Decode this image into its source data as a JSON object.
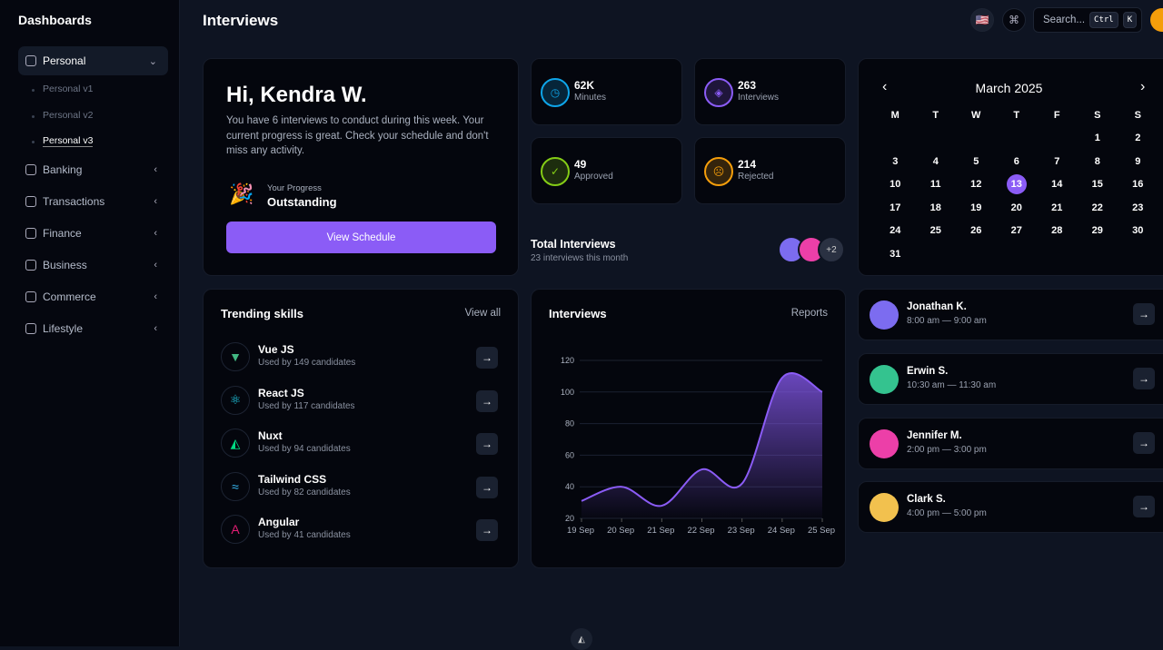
{
  "sidebar": {
    "title": "Dashboards",
    "items": [
      {
        "label": "Personal",
        "icon": "cube-icon",
        "expanded": true
      },
      {
        "label": "Banking",
        "icon": "building-icon"
      },
      {
        "label": "Transactions",
        "icon": "credit-card-icon"
      },
      {
        "label": "Finance",
        "icon": "chart-icon"
      },
      {
        "label": "Business",
        "icon": "briefcase-icon"
      },
      {
        "label": "Commerce",
        "icon": "store-icon"
      },
      {
        "label": "Lifestyle",
        "icon": "plant-icon"
      }
    ],
    "subitems": [
      "Personal v1",
      "Personal v2",
      "Personal v3"
    ],
    "current_sub": "Personal v3"
  },
  "header": {
    "title": "Interviews",
    "search_placeholder": "Search...",
    "kbd1": "Ctrl",
    "kbd2": "K"
  },
  "greeting": {
    "title": "Hi, Kendra W.",
    "text": "You have 6 interviews to conduct during this week. Your current progress is great. Check your schedule and don't miss any activity.",
    "progress_label": "Your Progress",
    "progress_value": "Outstanding",
    "button": "View Schedule"
  },
  "stats": [
    {
      "value": "62K",
      "label": "Minutes",
      "color": "#0ea5e9"
    },
    {
      "value": "263",
      "label": "Interviews",
      "color": "#8b5cf6"
    },
    {
      "value": "49",
      "label": "Approved",
      "color": "#84cc16"
    },
    {
      "value": "214",
      "label": "Rejected",
      "color": "#f59e0b"
    }
  ],
  "total": {
    "title": "Total Interviews",
    "subtitle": "23 interviews this month",
    "more": "+2"
  },
  "calendar": {
    "month": "March 2025",
    "weekdays": [
      "M",
      "T",
      "W",
      "T",
      "F",
      "S",
      "S"
    ],
    "first_offset": 5,
    "days": 31,
    "selected": 13
  },
  "skills": {
    "title": "Trending skills",
    "link": "View all",
    "items": [
      {
        "name": "Vue JS",
        "sub": "Used by 149 candidates",
        "color": "#42b883",
        "glyph": "▼"
      },
      {
        "name": "React JS",
        "sub": "Used by 117 candidates",
        "color": "#22d3ee",
        "glyph": "⚛"
      },
      {
        "name": "Nuxt",
        "sub": "Used by 94 candidates",
        "color": "#00dc82",
        "glyph": "◭"
      },
      {
        "name": "Tailwind CSS",
        "sub": "Used by 82 candidates",
        "color": "#38bdf8",
        "glyph": "≈"
      },
      {
        "name": "Angular",
        "sub": "Used by 41 candidates",
        "color": "#e11d74",
        "glyph": "A"
      }
    ]
  },
  "chart_data": {
    "type": "area",
    "title": "Interviews",
    "link": "Reports",
    "categories": [
      "19 Sep",
      "20 Sep",
      "21 Sep",
      "22 Sep",
      "23 Sep",
      "24 Sep",
      "25 Sep"
    ],
    "values": [
      31,
      40,
      28,
      51,
      42,
      109,
      100
    ],
    "ylim": [
      20,
      120
    ],
    "yticks": [
      20,
      40,
      60,
      80,
      100,
      120
    ],
    "grid": true,
    "color": "#8b5cf6"
  },
  "people": [
    {
      "name": "Jonathan K.",
      "time": "8:00 am — 9:00 am",
      "color": "#7c6cf0"
    },
    {
      "name": "Erwin S.",
      "time": "10:30 am — 11:30 am",
      "color": "#34c38f"
    },
    {
      "name": "Jennifer M.",
      "time": "2:00 pm — 3:00 pm",
      "color": "#ec3fa8"
    },
    {
      "name": "Clark S.",
      "time": "4:00 pm — 5:00 pm",
      "color": "#f2c14e"
    }
  ]
}
